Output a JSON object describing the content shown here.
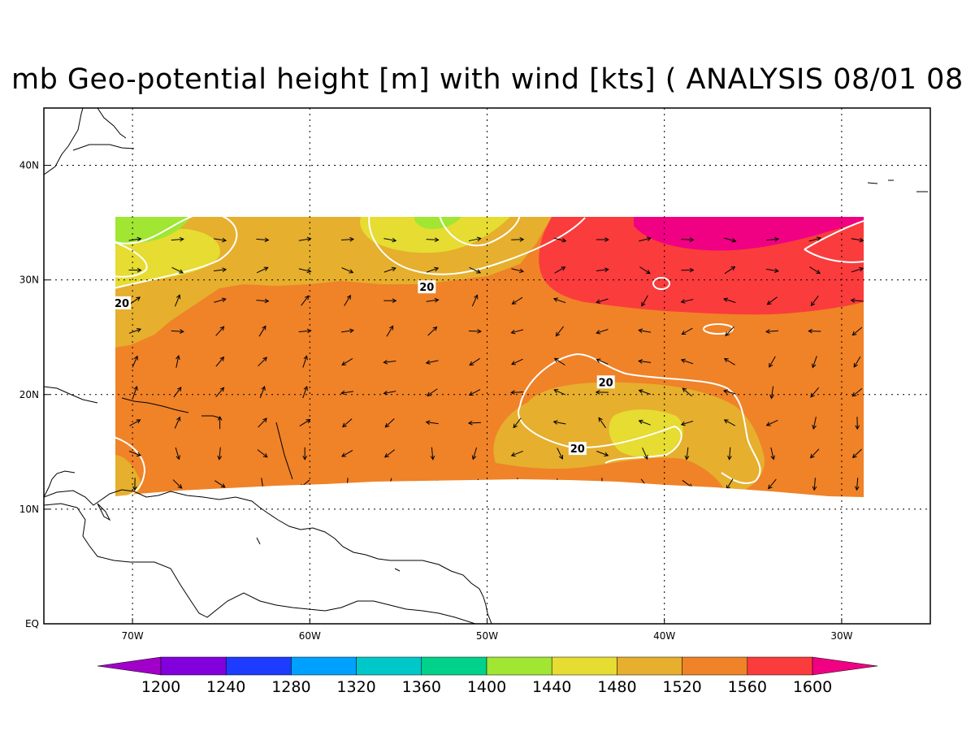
{
  "title": "mb Geo-potential height [m] with wind [kts] ( ANALYSIS 08/01 08",
  "map": {
    "lon_range": [
      -75,
      -25
    ],
    "lat_range": [
      0,
      45
    ],
    "data_lon_range": [
      -71,
      -29
    ],
    "data_lat_range": [
      11,
      35.5
    ],
    "x_ticks": [
      {
        "lon": -70,
        "label": "70W"
      },
      {
        "lon": -60,
        "label": "60W"
      },
      {
        "lon": -50,
        "label": "50W"
      },
      {
        "lon": -40,
        "label": "40W"
      },
      {
        "lon": -30,
        "label": "30W"
      }
    ],
    "y_ticks": [
      {
        "lat": 0,
        "label": "EQ"
      },
      {
        "lat": 10,
        "label": "10N"
      },
      {
        "lat": 20,
        "label": "20N"
      },
      {
        "lat": 30,
        "label": "30N"
      },
      {
        "lat": 40,
        "label": "40N"
      }
    ],
    "grid": "dotted",
    "wind_contour_value": "20",
    "contour_labels": [
      {
        "text": "20",
        "lon": -70.6,
        "lat": 28
      },
      {
        "text": "20",
        "lon": -53.4,
        "lat": 29.4
      },
      {
        "text": "20",
        "lon": -43.3,
        "lat": 21.1
      },
      {
        "text": "20",
        "lon": -44.9,
        "lat": 15.3
      }
    ]
  },
  "colorbar": {
    "levels": [
      "1200",
      "1240",
      "1280",
      "1320",
      "1360",
      "1400",
      "1440",
      "1480",
      "1520",
      "1560",
      "1600"
    ],
    "colors": [
      "#a000c8",
      "#8200dc",
      "#1e3cff",
      "#00a0ff",
      "#00c8c8",
      "#00d28c",
      "#a0e632",
      "#e6dc32",
      "#e6af2d",
      "#f08228",
      "#fa3c3c",
      "#f00082"
    ]
  },
  "fill_colors": {
    "c1440": "#a0e632",
    "c1480": "#e6dc32",
    "c1520": "#e6af2d",
    "c1560": "#f08228",
    "c1600": "#fa3c3c",
    "c1640": "#f00082"
  }
}
